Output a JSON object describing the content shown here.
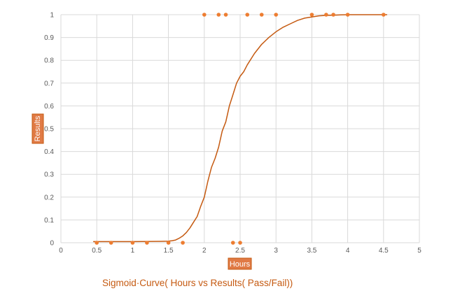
{
  "chart_data": {
    "type": "scatter",
    "title": "Sigmoid·Curve( Hours vs Results( Pass/Fail))",
    "xlabel": "Hours",
    "ylabel": "Results",
    "xlim": [
      0,
      5
    ],
    "ylim": [
      0,
      1
    ],
    "x_ticks": [
      "0",
      "0.5",
      "1",
      "1.5",
      "2",
      "2.5",
      "3",
      "3.5",
      "4",
      "4.5",
      "5"
    ],
    "y_ticks": [
      "0",
      "0.1",
      "0.2",
      "0.3",
      "0.4",
      "0.5",
      "0.6",
      "0.7",
      "0.8",
      "0.9",
      "1"
    ],
    "grid": true,
    "legend": "none",
    "colors": {
      "points": "#ed7d31",
      "curve": "#c55a11",
      "axis_title_bg": "#e07a45",
      "axis_title_border": "#c55a11",
      "caption": "#c55a11",
      "grid": "#d9d9d9",
      "tick_text": "#595959"
    },
    "series": [
      {
        "type": "scatter",
        "x": [
          0.5,
          0.7,
          1.0,
          1.2,
          1.5,
          1.7,
          2.0,
          2.2,
          2.3,
          2.4,
          2.5,
          2.6,
          2.8,
          3.0,
          3.5,
          3.7,
          3.8,
          4.0,
          4.5
        ],
        "y": [
          0,
          0,
          0,
          0,
          0,
          0,
          1,
          1,
          1,
          0,
          0,
          1,
          1,
          1,
          1,
          1,
          1,
          1,
          1
        ]
      },
      {
        "type": "line",
        "x": [
          0.45,
          0.5,
          1.0,
          1.4,
          1.5,
          1.55,
          1.6,
          1.65,
          1.7,
          1.75,
          1.8,
          1.85,
          1.9,
          1.95,
          2.0,
          2.05,
          2.1,
          2.15,
          2.2,
          2.25,
          2.3,
          2.35,
          2.4,
          2.45,
          2.5,
          2.55,
          2.6,
          2.7,
          2.8,
          2.9,
          3.0,
          3.1,
          3.2,
          3.3,
          3.4,
          3.5,
          3.6,
          3.7,
          3.8,
          3.9,
          4.0,
          4.2,
          4.4,
          4.55
        ],
        "y": [
          0.005,
          0.005,
          0.005,
          0.006,
          0.007,
          0.009,
          0.012,
          0.02,
          0.03,
          0.045,
          0.065,
          0.09,
          0.115,
          0.16,
          0.2,
          0.27,
          0.33,
          0.37,
          0.42,
          0.49,
          0.53,
          0.6,
          0.65,
          0.7,
          0.73,
          0.75,
          0.78,
          0.83,
          0.87,
          0.9,
          0.925,
          0.945,
          0.96,
          0.975,
          0.985,
          0.99,
          0.995,
          0.997,
          0.998,
          0.999,
          1.0,
          1.0,
          1.0,
          1.0
        ]
      }
    ]
  }
}
